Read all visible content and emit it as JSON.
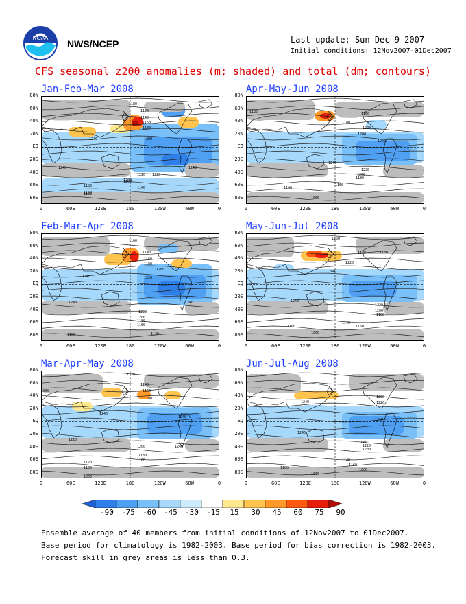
{
  "header": {
    "org_label": "NWS/NCEP",
    "logo_text": "NOAA",
    "last_update": "Last update: Sun Dec 9 2007",
    "initial_conditions": "Initial conditions: 12Nov2007-01Dec2007",
    "title": "CFS seasonal z200 anomalies (m; shaded) and total (dm; contours)"
  },
  "axes": {
    "lat_labels": [
      "80N",
      "60N",
      "40N",
      "20N",
      "EQ",
      "20S",
      "40S",
      "60S",
      "80S"
    ],
    "lon_labels": [
      "0",
      "60E",
      "120E",
      "180",
      "120W",
      "60W",
      "0"
    ]
  },
  "panels": [
    {
      "id": "p1",
      "title": "Jan-Feb-Mar 2008",
      "contour_labels": [
        "1180",
        "1120",
        "1140",
        "1160",
        "1180",
        "1240",
        "1200",
        "1220",
        "1200",
        "1240",
        "1240",
        "1220",
        "1200",
        "1180",
        "1160",
        "1120",
        "1140"
      ]
    },
    {
      "id": "p2",
      "title": "Apr-May-Jun 2008",
      "contour_labels": [
        "1180",
        "1160",
        "1180",
        "1220",
        "1200",
        "1240",
        "1240",
        "1220",
        "1200",
        "1180",
        "1140",
        "1160",
        "1060"
      ]
    },
    {
      "id": "p3",
      "title": "Feb-Mar-Apr 2008",
      "contour_labels": [
        "1160",
        "1140",
        "1160",
        "1180",
        "1200",
        "1240",
        "1220",
        "1240",
        "1240",
        "1220",
        "1200",
        "1180",
        "1160",
        "1120",
        "1100"
      ]
    },
    {
      "id": "p4",
      "title": "May-Jun-Jul 2008",
      "contour_labels": [
        "1160",
        "1180",
        "1220",
        "1180",
        "1240",
        "1240",
        "1220",
        "1200",
        "1180",
        "1140",
        "1160",
        "1100",
        "1060"
      ]
    },
    {
      "id": "p5",
      "title": "Mar-Apr-May 2008",
      "contour_labels": [
        "1120",
        "1140",
        "1160",
        "1180",
        "1060",
        "1240",
        "1240",
        "1220",
        "1240",
        "1200",
        "1180",
        "1160",
        "1120",
        "1100",
        "1060"
      ]
    },
    {
      "id": "p6",
      "title": "Jun-Jul-Aug 2008",
      "contour_labels": [
        "1200",
        "1220",
        "1240",
        "1240",
        "1240",
        "1080",
        "1220",
        "1200",
        "1140",
        "1160",
        "1100",
        "1060",
        "1080"
      ]
    }
  ],
  "colorbar": {
    "tick_labels": [
      "-90",
      "-75",
      "-60",
      "-45",
      "-30",
      "-15",
      "15",
      "30",
      "45",
      "60",
      "75",
      "90"
    ],
    "colors": [
      "#1f5fd6",
      "#2f7fe8",
      "#4f9ff2",
      "#79bff8",
      "#a5d8fb",
      "#cdebfd",
      "#ffffff",
      "#ffe98f",
      "#ffc44d",
      "#ff9a2a",
      "#ff5a10",
      "#e81e0c",
      "#b40c08"
    ]
  },
  "footer": {
    "line1": "Ensemble average of 40 members from initial conditions of 12Nov2007 to 01Dec2007.",
    "line2": "Base period for climatology is 1982-2003. Base period for bias correction is 1982-2003.",
    "line3": "Forecast skill in grey areas is less than 0.3."
  }
}
